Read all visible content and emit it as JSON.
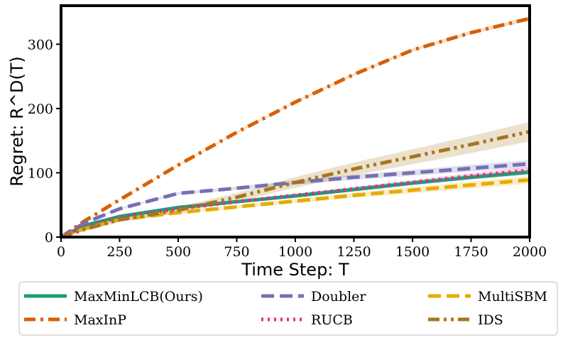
{
  "chart_data": {
    "type": "line",
    "title": "",
    "xlabel": "Time Step: T",
    "ylabel": "Regret: R^D(T)",
    "xlim": [
      0,
      2000
    ],
    "ylim": [
      0,
      360
    ],
    "xticks": [
      0,
      250,
      500,
      750,
      1000,
      1250,
      1500,
      1750,
      2000
    ],
    "yticks": [
      0,
      100,
      200,
      300
    ],
    "x": [
      0,
      100,
      250,
      500,
      750,
      1000,
      1250,
      1500,
      1750,
      2000
    ],
    "series": [
      {
        "name": "MaxMinLCB(Ours)",
        "color": "#1b9e77",
        "style": "solid",
        "values": [
          0,
          18,
          32,
          46,
          55,
          64,
          74,
          84,
          93,
          101
        ],
        "band": 4
      },
      {
        "name": "MaxInP",
        "color": "#d95f02",
        "style": "dashdot",
        "values": [
          0,
          25,
          58,
          112,
          163,
          210,
          253,
          291,
          318,
          340
        ],
        "band": 3
      },
      {
        "name": "Doubler",
        "color": "#7570b3",
        "style": "dashed",
        "values": [
          0,
          22,
          44,
          68,
          76,
          85,
          93,
          100,
          107,
          114
        ],
        "band": 6
      },
      {
        "name": "RUCB",
        "color": "#e7298a",
        "style": "dotted",
        "values": [
          0,
          16,
          31,
          44,
          55,
          65,
          75,
          85,
          95,
          104
        ],
        "band": 5
      },
      {
        "name": "MultiSBM",
        "color": "#e6ab02",
        "style": "dashed",
        "values": [
          0,
          13,
          27,
          38,
          47,
          56,
          65,
          73,
          81,
          89
        ],
        "band": 6
      },
      {
        "name": "IDS",
        "color": "#a6761d",
        "style": "dashdotdot",
        "values": [
          0,
          12,
          27,
          42,
          62,
          85,
          106,
          125,
          144,
          164
        ],
        "band": 15
      }
    ],
    "legend": {
      "position": "bottom",
      "columns": 3,
      "entries": [
        "MaxMinLCB(Ours)",
        "MaxInP",
        "Doubler",
        "RUCB",
        "MultiSBM",
        "IDS"
      ]
    }
  }
}
